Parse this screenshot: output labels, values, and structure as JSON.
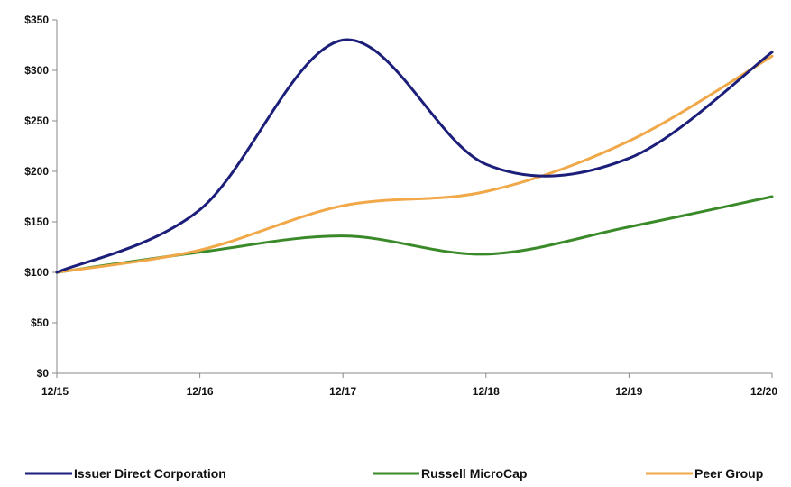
{
  "chart_data": {
    "type": "line",
    "title": "",
    "xlabel": "",
    "ylabel": "",
    "categories": [
      "12/15",
      "12/16",
      "12/17",
      "12/18",
      "12/19",
      "12/20"
    ],
    "y_ticks": [
      "$0",
      "$50",
      "$100",
      "$150",
      "$200",
      "$250",
      "$300",
      "$350"
    ],
    "ylim": [
      0,
      350
    ],
    "grid": false,
    "legend_position": "bottom",
    "series": [
      {
        "name": "Issuer Direct Corporation",
        "color": "#1c1f7a",
        "values": [
          100,
          162,
          330,
          207,
          213,
          318
        ]
      },
      {
        "name": "Russell MicroCap",
        "color": "#3a8a2a",
        "values": [
          100,
          120,
          136,
          118,
          145,
          175
        ]
      },
      {
        "name": "Peer Group",
        "color": "#f0a848",
        "values": [
          100,
          122,
          166,
          180,
          230,
          314
        ]
      }
    ]
  }
}
